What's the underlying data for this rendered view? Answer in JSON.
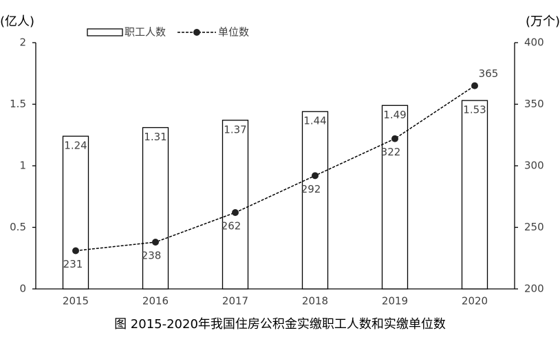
{
  "chart_data": {
    "type": "bar",
    "title": "图 2015-2020年我国住房公积金实缴职工人数和实缴单位数",
    "y_label": "(亿人)",
    "y2_label": "(万个)",
    "categories": [
      "2015",
      "2016",
      "2017",
      "2018",
      "2019",
      "2020"
    ],
    "series": [
      {
        "name": "职工人数",
        "type": "bar",
        "color": "#ffffff",
        "values": [
          1.24,
          1.31,
          1.37,
          1.44,
          1.49,
          1.53
        ]
      },
      {
        "name": "单位数",
        "type": "line",
        "axis": "y2",
        "color": "#000000",
        "values": [
          231,
          238,
          262,
          292,
          322,
          365
        ]
      }
    ],
    "ylim": [
      0,
      2
    ],
    "yticks": [
      0,
      0.5,
      1,
      1.5,
      2
    ],
    "y2lim": [
      200,
      400
    ],
    "y2ticks": [
      200,
      250,
      300,
      350,
      400
    ],
    "grid": false,
    "legend": "top"
  }
}
